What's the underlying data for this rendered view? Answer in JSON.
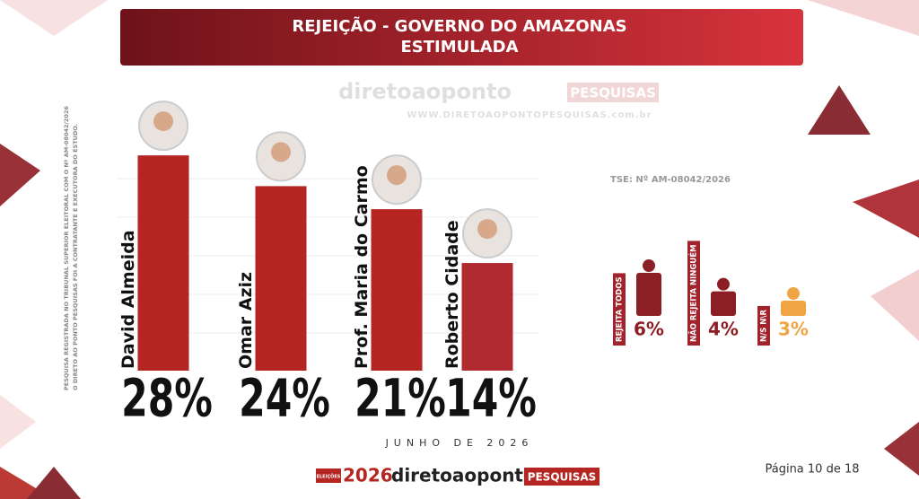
{
  "chart_data": [
    {
      "type": "bar",
      "title": "REJEIÇÃO - GOVERNO DO AMAZONAS",
      "subtitle": "ESTIMULADA",
      "categories": [
        "David Almeida",
        "Omar Aziz",
        "Prof. Maria do Carmo",
        "Roberto Cidade"
      ],
      "values": [
        28,
        24,
        21,
        14
      ],
      "value_labels": [
        "28%",
        "24%",
        "21%",
        "14%"
      ],
      "colors": [
        "#b52521",
        "#b52521",
        "#b52521",
        "#b02a30"
      ],
      "ylim": [
        0,
        30
      ]
    },
    {
      "type": "pictogram",
      "annotation": "TSE: Nº AM-08042/2026",
      "categories": [
        "REJEITA TODOS",
        "NÃO REJEITA NINGUÉM",
        "N/S N\\R"
      ],
      "values": [
        6,
        4,
        3
      ],
      "value_labels": [
        "6%",
        "4%",
        "3%"
      ],
      "colors": [
        "#8c1f26",
        "#8c1f26",
        "#f0a545"
      ],
      "ylim": [
        0,
        6
      ]
    }
  ],
  "watermark": {
    "brand": "diretoaoponto",
    "tag": "PESQUISAS",
    "site": "WWW.DIRETOAOPONTOPESQUISAS.com.br"
  },
  "disclaimer": [
    "PESQUISA REGISTRADA NO TRIBUNAL SUPERIOR ELEITORAL COM O Nº AM-08042/2026",
    "O DIRETO AO PONTO PESQUISAS FOI A CONTRATANTE E EXECUTORA DO ESTUDO."
  ],
  "date": "JUNHO DE 2026",
  "page": "Página 10 de 18",
  "footer": {
    "badge": "ELEIÇÕES",
    "year": "2026",
    "brand": "diretoaoponto",
    "tag": "PESQUISAS"
  }
}
